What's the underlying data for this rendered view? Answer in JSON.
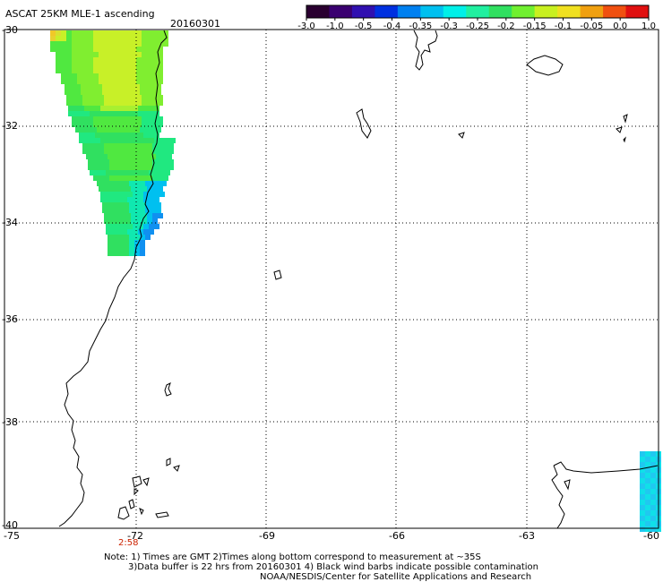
{
  "title": "ASCAT 25KM MLE-1 ascending",
  "date": "20160301",
  "colorbar": {
    "labels": [
      "-3.0",
      "-1.0",
      "-0.5",
      "-0.4",
      "-0.35",
      "-0.3",
      "-0.25",
      "-0.2",
      "-0.15",
      "-0.1",
      "-0.05",
      "0.0",
      "1.0"
    ],
    "colors": [
      "#2a0030",
      "#3a0070",
      "#3010b0",
      "#0030e0",
      "#0080f0",
      "#00c0f0",
      "#00f0e8",
      "#20f0a0",
      "#30e060",
      "#70f030",
      "#c8f020",
      "#f0e020",
      "#f0a010",
      "#f05010",
      "#e01010"
    ]
  },
  "axes": {
    "lat_labels": [
      "-30",
      "-32",
      "-34",
      "-36",
      "-38",
      "-40"
    ],
    "lon_labels": [
      "-75",
      "-72",
      "-69",
      "-66",
      "-63",
      "-60"
    ]
  },
  "time_marker": {
    "label": "2:58",
    "color": "#cc2200"
  },
  "notes": {
    "line1": "Note: 1) Times are GMT 2)Times along bottom correspond to measurement at ~35S",
    "line2": "3)Data buffer is 22 hrs from 20160301 4) Black wind barbs indicate possible contamination",
    "line3": "NOAA/NESDIS/Center for Satellite Applications and Research"
  }
}
